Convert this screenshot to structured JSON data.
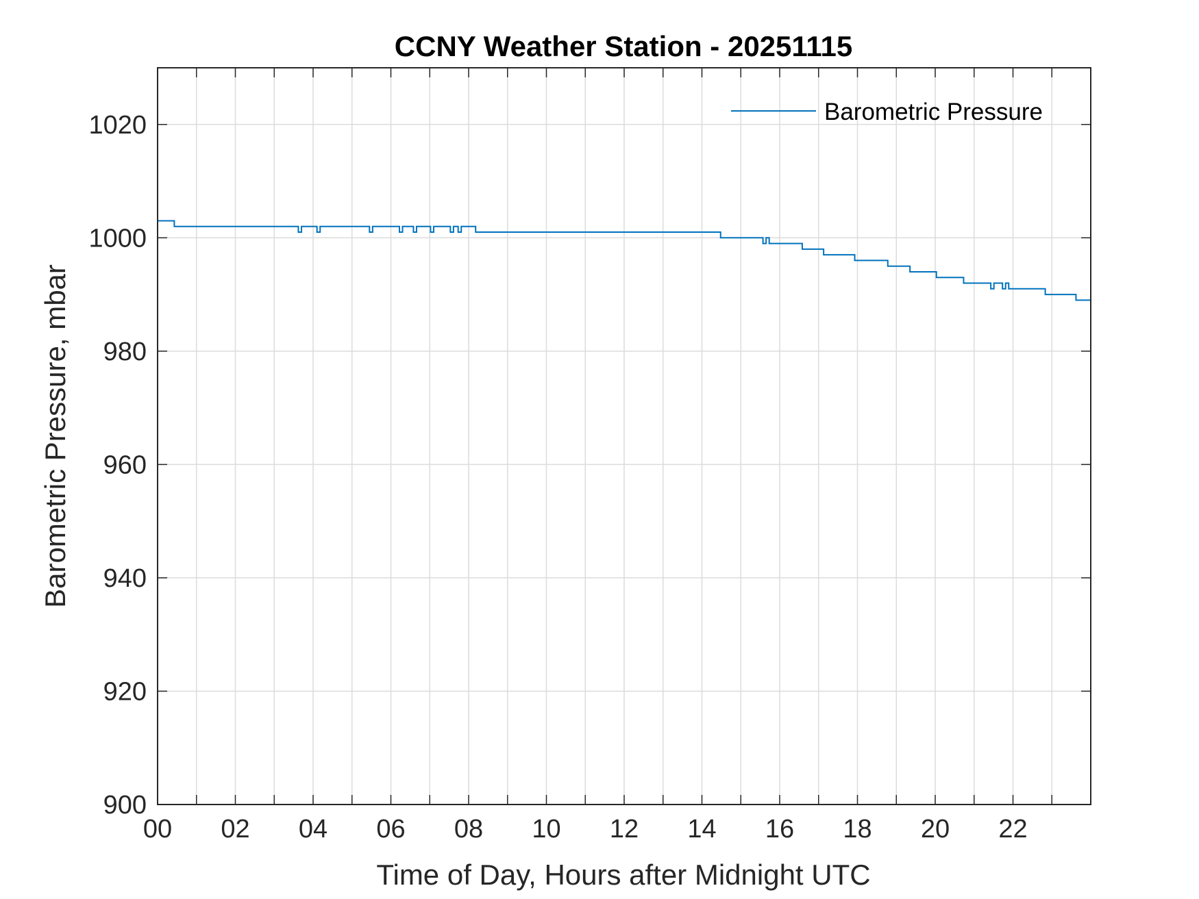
{
  "chart_data": {
    "type": "line",
    "title": "CCNY Weather Station - 20251115",
    "xlabel": "Time of Day, Hours after Midnight UTC",
    "ylabel": "Barometric Pressure, mbar",
    "xlim": [
      0,
      24
    ],
    "ylim": [
      900,
      1030
    ],
    "x_ticks": [
      0,
      2,
      4,
      6,
      8,
      10,
      12,
      14,
      16,
      18,
      20,
      22
    ],
    "x_tick_labels": [
      "00",
      "02",
      "04",
      "06",
      "08",
      "10",
      "12",
      "14",
      "16",
      "18",
      "20",
      "22"
    ],
    "x_minor_ticks": [
      1,
      3,
      5,
      7,
      9,
      11,
      13,
      15,
      17,
      19,
      21,
      23
    ],
    "y_ticks": [
      900,
      920,
      940,
      960,
      980,
      1000,
      1020
    ],
    "y_tick_labels": [
      "900",
      "920",
      "940",
      "960",
      "980",
      "1000",
      "1020"
    ],
    "grid": true,
    "legend_position": "top-right",
    "series": [
      {
        "name": "Barometric Pressure",
        "color": "#0072BD",
        "step": true,
        "points": [
          [
            0.0,
            1003
          ],
          [
            0.43,
            1002
          ],
          [
            3.62,
            1001
          ],
          [
            3.7,
            1002
          ],
          [
            4.1,
            1001
          ],
          [
            4.18,
            1002
          ],
          [
            5.45,
            1001
          ],
          [
            5.53,
            1002
          ],
          [
            6.22,
            1001
          ],
          [
            6.3,
            1002
          ],
          [
            6.58,
            1001
          ],
          [
            6.66,
            1002
          ],
          [
            7.02,
            1001
          ],
          [
            7.1,
            1002
          ],
          [
            7.53,
            1001
          ],
          [
            7.61,
            1002
          ],
          [
            7.73,
            1001
          ],
          [
            7.81,
            1002
          ],
          [
            8.18,
            1001
          ],
          [
            14.48,
            1000
          ],
          [
            15.57,
            999
          ],
          [
            15.65,
            1000
          ],
          [
            15.73,
            999
          ],
          [
            16.58,
            998
          ],
          [
            17.13,
            997
          ],
          [
            17.93,
            996
          ],
          [
            18.78,
            995
          ],
          [
            19.35,
            994
          ],
          [
            20.03,
            993
          ],
          [
            20.73,
            992
          ],
          [
            21.43,
            991
          ],
          [
            21.51,
            992
          ],
          [
            21.73,
            991
          ],
          [
            21.81,
            992
          ],
          [
            21.89,
            991
          ],
          [
            22.83,
            990
          ],
          [
            23.62,
            989
          ],
          [
            24.0,
            989
          ]
        ]
      }
    ]
  }
}
